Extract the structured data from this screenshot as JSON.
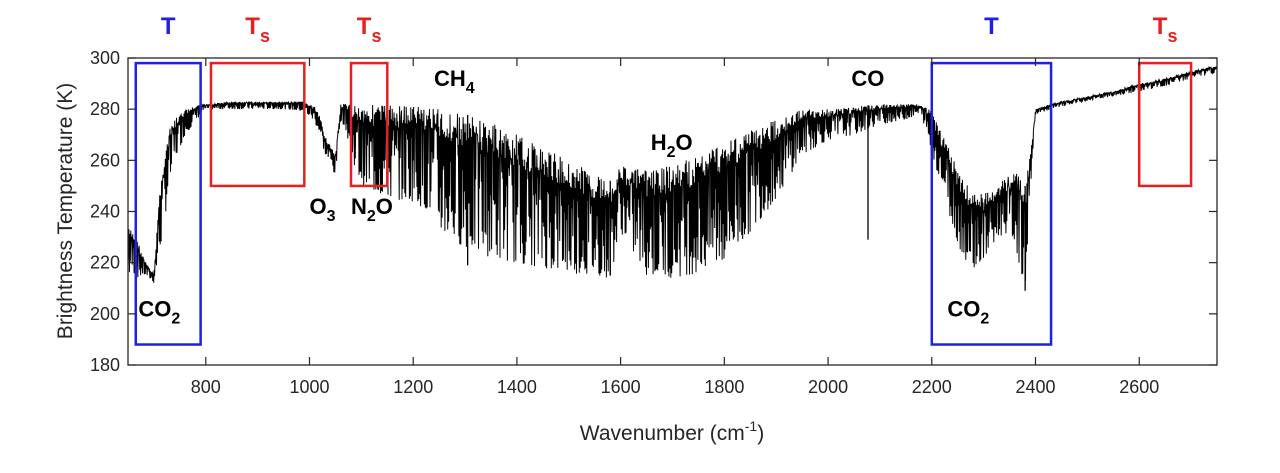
{
  "chart_data": {
    "type": "line",
    "xlabel": "Wavenumber (cm",
    "xlabel_sup": "-1",
    "xlabel_end": ")",
    "ylabel": "Brightness Temperature (K)",
    "xlim": [
      650,
      2750
    ],
    "ylim": [
      180,
      300
    ],
    "x_ticks": [
      800,
      1000,
      1200,
      1400,
      1600,
      1800,
      2000,
      2200,
      2400,
      2600
    ],
    "y_ticks": [
      180,
      200,
      220,
      240,
      260,
      280,
      300
    ],
    "series": [
      {
        "name": "Brightness temperature spectrum",
        "color": "#000000",
        "envelope": {
          "x": [
            650,
            660,
            670,
            680,
            690,
            700,
            710,
            720,
            730,
            740,
            760,
            780,
            790,
            800,
            850,
            900,
            950,
            990,
            1000,
            1010,
            1020,
            1030,
            1040,
            1050,
            1060,
            1070,
            1080,
            1100,
            1150,
            1200,
            1230,
            1250,
            1300,
            1350,
            1400,
            1450,
            1500,
            1550,
            1580,
            1600,
            1650,
            1700,
            1750,
            1800,
            1850,
            1900,
            1950,
            2000,
            2050,
            2100,
            2150,
            2180,
            2200,
            2220,
            2240,
            2260,
            2280,
            2300,
            2320,
            2340,
            2360,
            2370,
            2380,
            2390,
            2400,
            2430,
            2450,
            2500,
            2550,
            2600,
            2650,
            2700,
            2750
          ],
          "upper": [
            234,
            232,
            228,
            222,
            218,
            216,
            246,
            262,
            272,
            276,
            280,
            281,
            282,
            282,
            283,
            283,
            283,
            283,
            282,
            281,
            277,
            270,
            266,
            262,
            282,
            282,
            282,
            282,
            282,
            282,
            282,
            280,
            278,
            275,
            270,
            265,
            260,
            255,
            252,
            258,
            256,
            258,
            262,
            268,
            272,
            276,
            280,
            280,
            281,
            282,
            282,
            282,
            279,
            270,
            262,
            252,
            248,
            247,
            250,
            253,
            255,
            255,
            250,
            262,
            280,
            282,
            283,
            285,
            287,
            290,
            292,
            295,
            297
          ],
          "lower": [
            214,
            216,
            214,
            215,
            214,
            212,
            222,
            236,
            250,
            260,
            270,
            275,
            278,
            280,
            280,
            280,
            280,
            279,
            277,
            275,
            270,
            262,
            258,
            254,
            276,
            272,
            262,
            250,
            245,
            244,
            240,
            232,
            226,
            222,
            220,
            218,
            216,
            215,
            214,
            232,
            215,
            214,
            216,
            220,
            232,
            245,
            262,
            268,
            270,
            274,
            276,
            278,
            262,
            250,
            234,
            222,
            218,
            220,
            226,
            232,
            228,
            218,
            210,
            248,
            278,
            280,
            281,
            283,
            285,
            287,
            289,
            292,
            294
          ]
        },
        "lines": [
          {
            "x": 1305,
            "y": 219
          },
          {
            "x": 1580,
            "y": 215
          },
          {
            "x": 2077,
            "y": 229
          },
          {
            "x": 2380,
            "y": 209
          }
        ]
      }
    ],
    "boxes": [
      {
        "x0": 665,
        "x1": 790,
        "y0": 188,
        "y1": 298,
        "label": "T",
        "sub": "",
        "color": "#1f1fe6"
      },
      {
        "x0": 810,
        "x1": 990,
        "y0": 250,
        "y1": 298,
        "label": "T",
        "sub": "s",
        "color": "#e62020"
      },
      {
        "x0": 1080,
        "x1": 1150,
        "y0": 250,
        "y1": 298,
        "label": "T",
        "sub": "s",
        "color": "#e62020"
      },
      {
        "x0": 2200,
        "x1": 2430,
        "y0": 188,
        "y1": 298,
        "label": "T",
        "sub": "",
        "color": "#1f1fe6"
      },
      {
        "x0": 2600,
        "x1": 2700,
        "y0": 250,
        "y1": 298,
        "label": "T",
        "sub": "s",
        "color": "#e62020"
      }
    ],
    "annotations": [
      {
        "main": "CO",
        "sub": "2",
        "x": 670,
        "y": 199
      },
      {
        "main": "O",
        "sub": "3",
        "x": 1000,
        "y": 239
      },
      {
        "main": "N",
        "sub": "2",
        "end": "O",
        "x": 1080,
        "y": 239
      },
      {
        "main": "CH",
        "sub": "4",
        "x": 1240,
        "y": 289
      },
      {
        "main": "H",
        "sub": "2",
        "end": "O",
        "x": 1658,
        "y": 264
      },
      {
        "main": "CO",
        "sub": "",
        "x": 2045,
        "y": 289
      },
      {
        "main": "CO",
        "sub": "2",
        "x": 2230,
        "y": 199
      }
    ]
  }
}
